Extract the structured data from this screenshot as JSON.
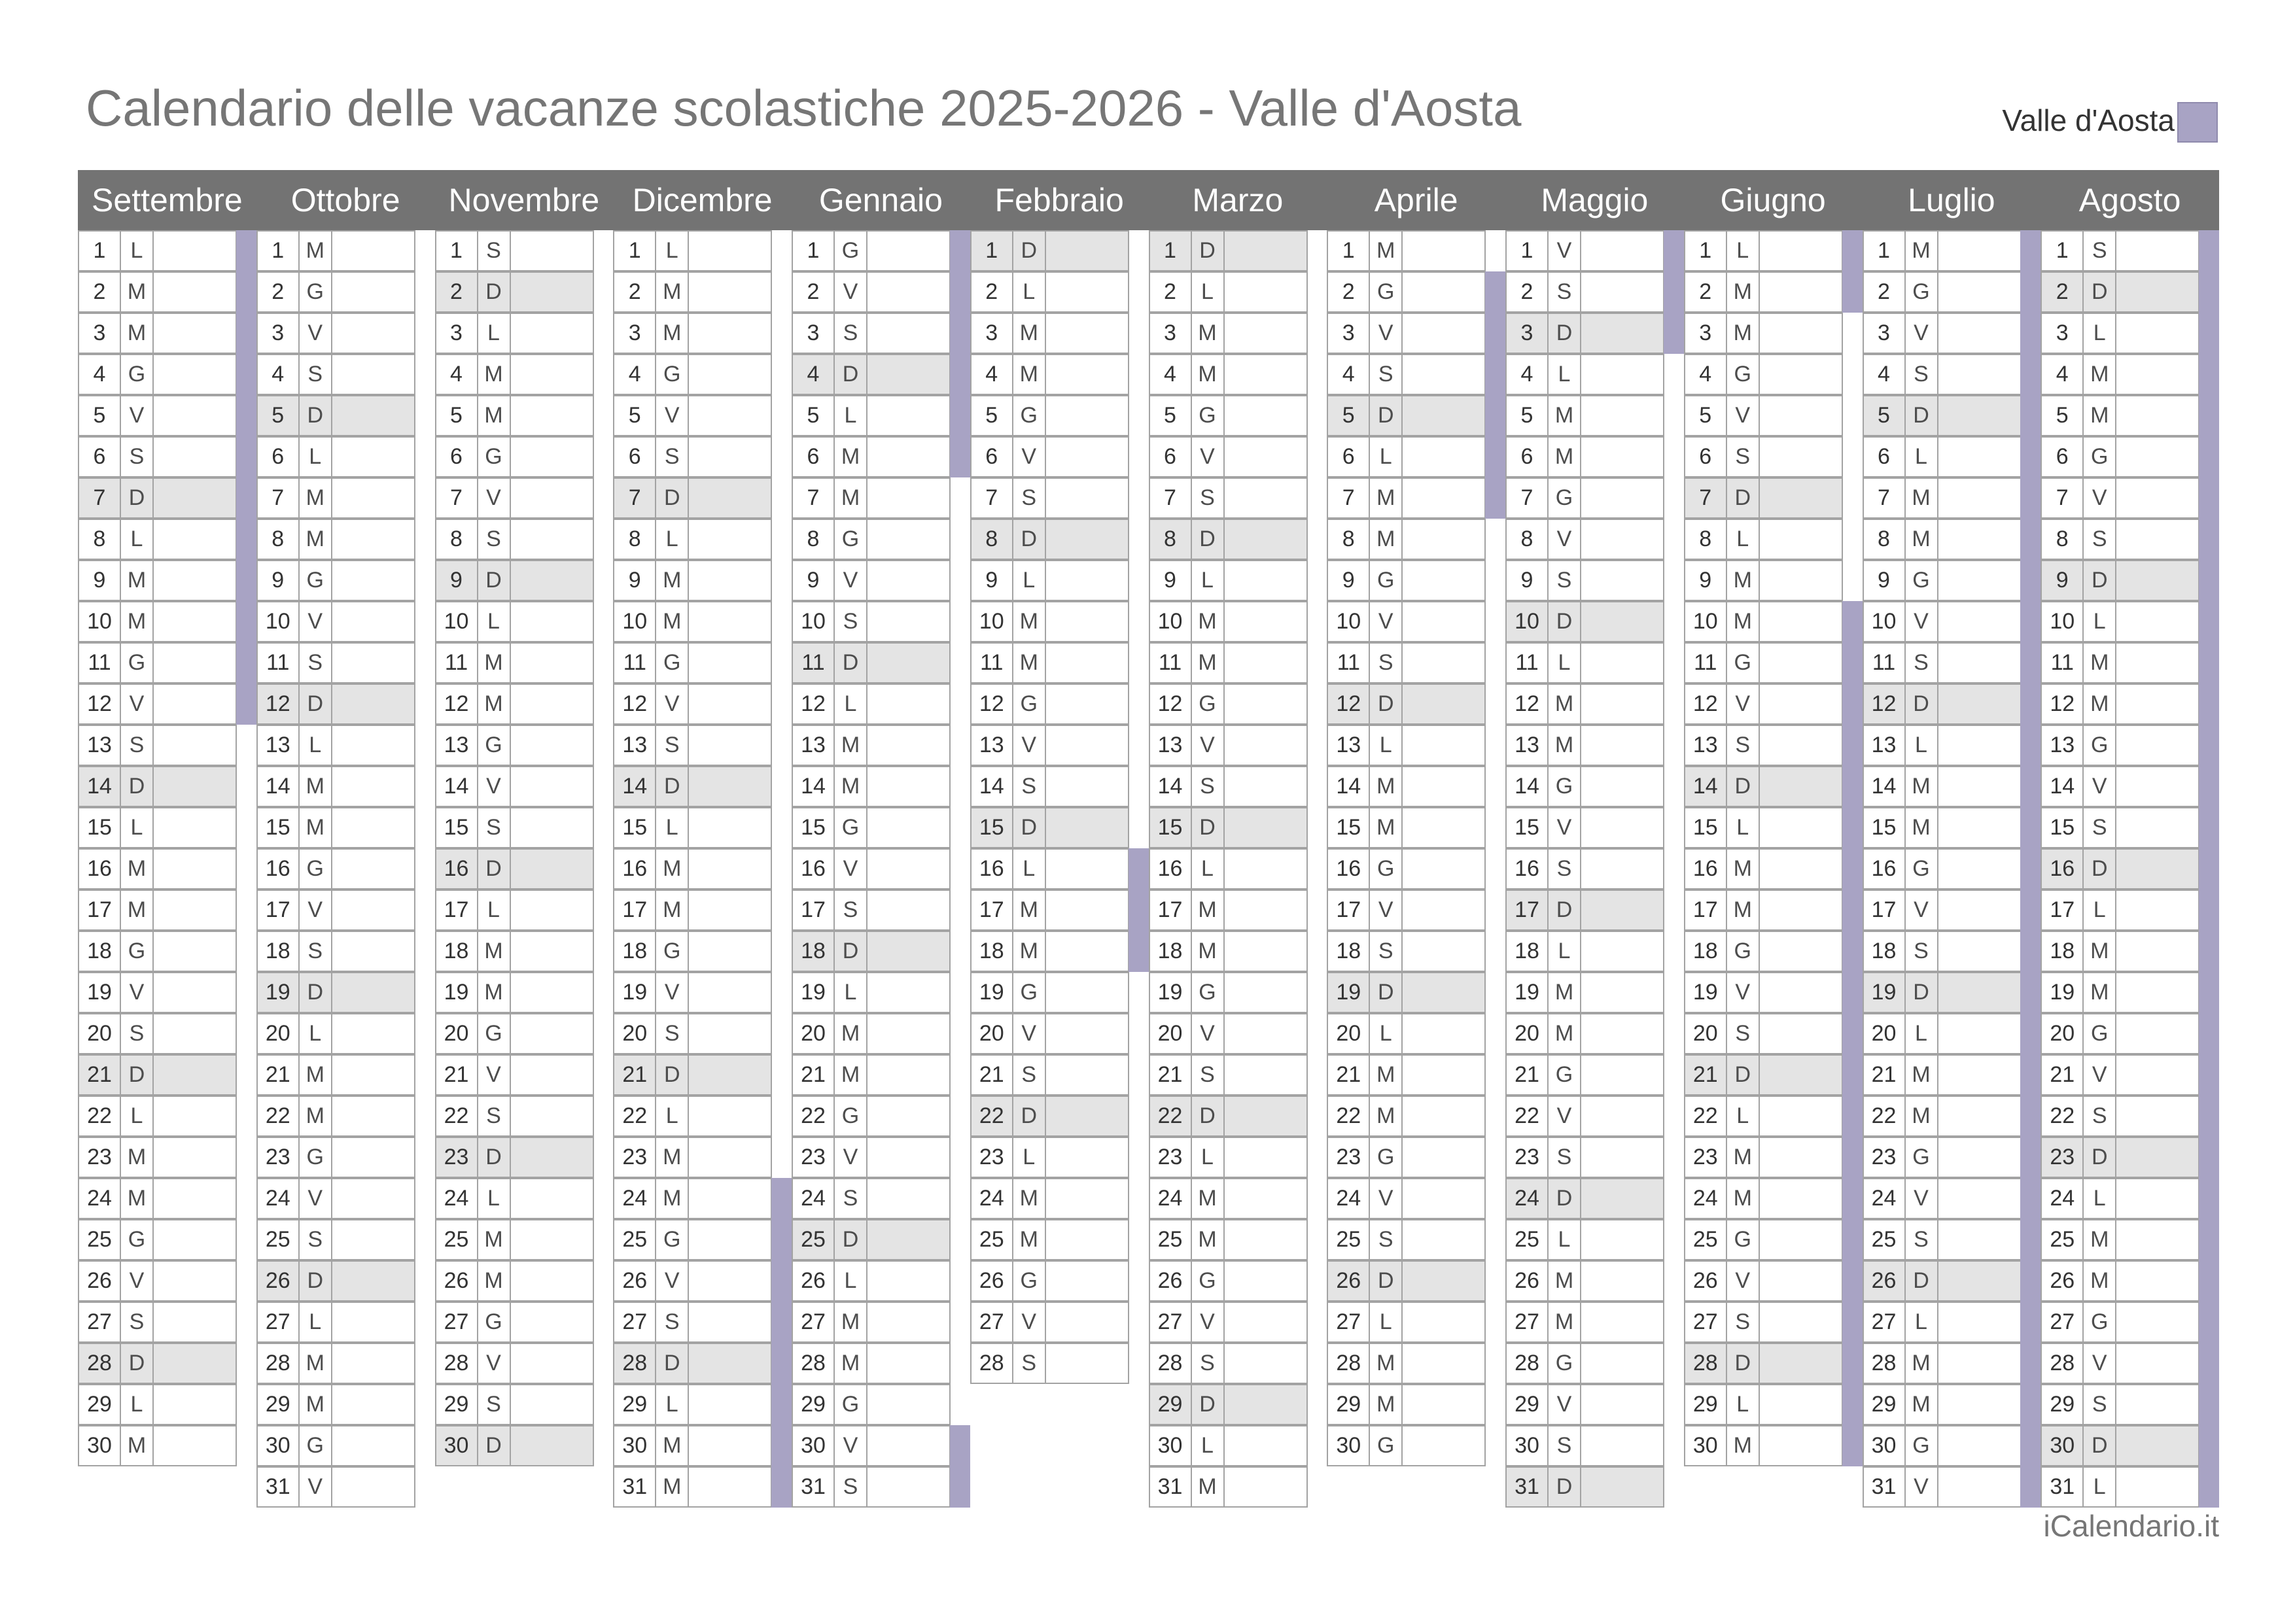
{
  "title": "Calendario delle vacanze scolastiche 2025-2026 - Valle d'Aosta",
  "legend": {
    "label": "Valle d'Aosta",
    "color": "#a8a3c4"
  },
  "footer": "iCalendario.it",
  "colors": {
    "header": "#737373",
    "weekend_row": "#e4e4e4",
    "holiday": "#a8a3c4",
    "grid": "#a3a3a3"
  },
  "months": [
    {
      "name": "Settembre",
      "days": 30,
      "weekdays": "LMMGVSDLMMGVSDLMMGVSDLMMGVSDLM",
      "holidays": [
        [
          1,
          12
        ]
      ]
    },
    {
      "name": "Ottobre",
      "days": 31,
      "weekdays": "MGVSDLMMGVSDLMMGVSDLMMGVSDLMMGV",
      "holidays": []
    },
    {
      "name": "Novembre",
      "days": 30,
      "weekdays": "SDLMMGVSDLMMGVSDLMMGVSDLMMGVSD",
      "holidays": []
    },
    {
      "name": "Dicembre",
      "days": 31,
      "weekdays": "LMMGVSDLMMGVSDLMMGVSDLMMGVSDLMM",
      "holidays": [
        [
          24,
          31
        ]
      ]
    },
    {
      "name": "Gennaio",
      "days": 31,
      "weekdays": "GVSDLMMGVSDLMMGVSDLMMGVSDLMMGVS",
      "holidays": [
        [
          1,
          6
        ],
        [
          30,
          31
        ]
      ]
    },
    {
      "name": "Febbraio",
      "days": 28,
      "weekdays": "DLMMGVSDLMMGVSDLMMGVSDLMMGVS",
      "holidays": [
        [
          16,
          18
        ]
      ]
    },
    {
      "name": "Marzo",
      "days": 31,
      "weekdays": "DLMMGVSDLMMGVSDLMMGVSDLMMGVSDLM",
      "holidays": []
    },
    {
      "name": "Aprile",
      "days": 30,
      "weekdays": "MGVSDLMMGVSDLMMGVSDLMMGVSDLMMG",
      "holidays": [
        [
          2,
          7
        ]
      ]
    },
    {
      "name": "Maggio",
      "days": 31,
      "weekdays": "VSDLMMGVSDLMMGVSDLMMGVSDLMMGVSD",
      "holidays": [
        [
          1,
          3
        ]
      ]
    },
    {
      "name": "Giugno",
      "days": 30,
      "weekdays": "LMMGVSDLMMGVSDLMMGVSDLMMGVSDLM",
      "holidays": [
        [
          1,
          2
        ],
        [
          10,
          30
        ]
      ]
    },
    {
      "name": "Luglio",
      "days": 31,
      "weekdays": "MGVSDLMMGVSDLMMGVSDLMMGVSDLMMGV",
      "holidays": [
        [
          1,
          31
        ]
      ]
    },
    {
      "name": "Agosto",
      "days": 31,
      "weekdays": "SDLMMGVSDLMMGVSDLMMGVSDLMMGVSDL",
      "holidays": [
        [
          1,
          31
        ]
      ]
    }
  ]
}
